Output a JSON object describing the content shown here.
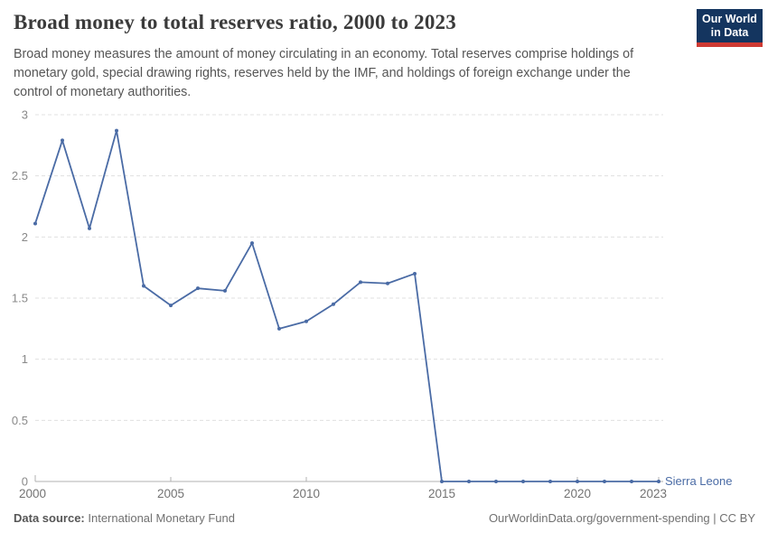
{
  "header": {
    "title": "Broad money to total reserves ratio, 2000 to 2023",
    "subtitle": "Broad money measures the amount of money circulating in an economy. Total reserves comprise holdings of monetary gold, special drawing rights, reserves held by the IMF, and holdings of foreign exchange under the control of monetary authorities.",
    "logo": {
      "line1": "Our World",
      "line2": "in Data",
      "bg_color": "#14355f",
      "accent_color": "#cf3a33"
    }
  },
  "chart_data": {
    "type": "line",
    "title": "Broad money to total reserves ratio, 2000 to 2023",
    "x": [
      2000,
      2001,
      2002,
      2003,
      2004,
      2005,
      2006,
      2007,
      2008,
      2009,
      2010,
      2011,
      2012,
      2013,
      2014,
      2015,
      2016,
      2017,
      2018,
      2019,
      2020,
      2021,
      2022,
      2023
    ],
    "series": [
      {
        "name": "Sierra Leone",
        "color": "#4a6ba5",
        "values": [
          2.11,
          2.79,
          2.07,
          2.87,
          1.6,
          1.44,
          1.58,
          1.56,
          1.95,
          1.25,
          1.31,
          1.45,
          1.63,
          1.62,
          1.7,
          0,
          0,
          0,
          0,
          0,
          0,
          0,
          0,
          0
        ]
      }
    ],
    "xlim": [
      2000,
      2023
    ],
    "ylim": [
      0,
      3
    ],
    "x_ticks": [
      2000,
      2005,
      2010,
      2015,
      2020,
      2023
    ],
    "y_ticks": [
      0,
      0.5,
      1,
      1.5,
      2,
      2.5,
      3
    ],
    "grid": "horizontal-dashed",
    "legend_position": "end-of-line"
  },
  "footer": {
    "datasource_label": "Data source:",
    "datasource_value": " International Monetary Fund",
    "right_text": "OurWorldinData.org/government-spending | CC BY"
  }
}
